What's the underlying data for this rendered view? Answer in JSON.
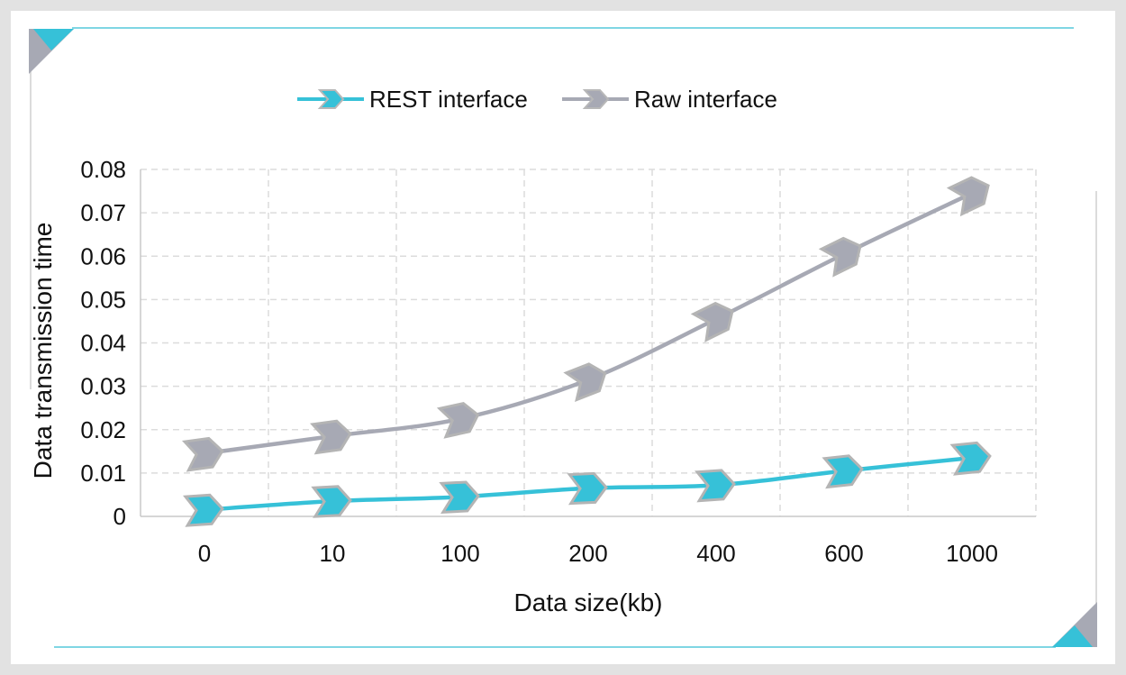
{
  "colors": {
    "accent": "#36c1d8",
    "gray": "#a7a9b4",
    "grid": "#dcdcdc",
    "frame_line": "#7fd6e3"
  },
  "chart_data": {
    "type": "line",
    "categories": [
      "0",
      "10",
      "100",
      "200",
      "400",
      "600",
      "1000"
    ],
    "series": [
      {
        "name": "REST interface",
        "color": "#36c1d8",
        "values": [
          0.0015,
          0.0035,
          0.0045,
          0.0065,
          0.0072,
          0.0105,
          0.0135
        ]
      },
      {
        "name": "Raw interface",
        "color": "#a7a9b4",
        "values": [
          0.0145,
          0.0185,
          0.0225,
          0.0315,
          0.0455,
          0.0605,
          0.0745
        ]
      }
    ],
    "ylim": [
      0,
      0.08
    ],
    "yticks": [
      "0",
      "0.01",
      "0.02",
      "0.03",
      "0.04",
      "0.05",
      "0.06",
      "0.07",
      "0.08"
    ],
    "xlabel": "Data size(kb)",
    "ylabel": "Data transmission time",
    "legend_position": "top-center",
    "grid": true,
    "marker": "chevron-arrow"
  }
}
